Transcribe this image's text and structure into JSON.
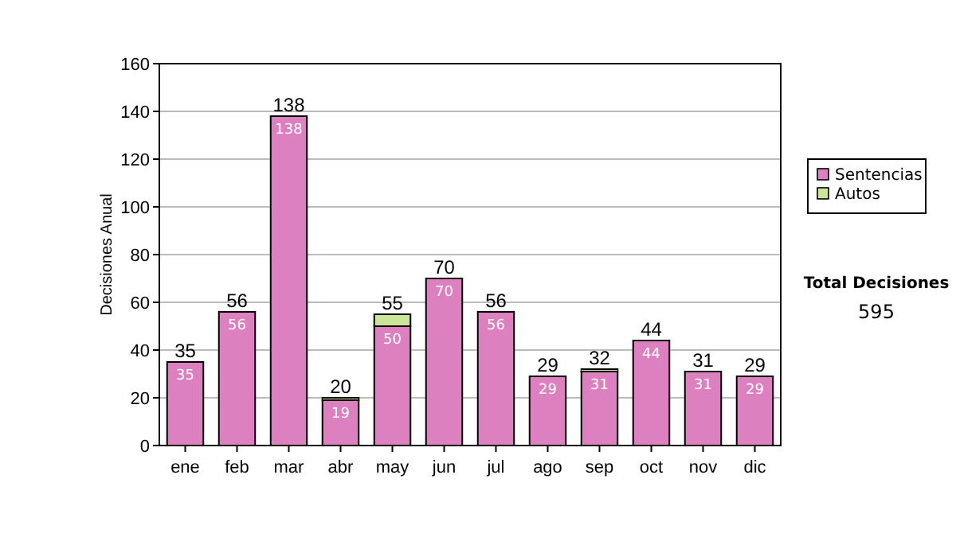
{
  "chart_data": {
    "type": "bar",
    "stacked": true,
    "ylabel": "Decisiones Anual",
    "categories": [
      "ene",
      "feb",
      "mar",
      "abr",
      "may",
      "jun",
      "jul",
      "ago",
      "sep",
      "oct",
      "nov",
      "dic"
    ],
    "series": [
      {
        "name": "Sentencias",
        "color": "#dd80c0",
        "values": [
          35,
          56,
          138,
          19,
          50,
          70,
          56,
          29,
          31,
          44,
          31,
          29
        ],
        "value_labels": [
          "35",
          "56",
          "138",
          "19",
          "50",
          "70",
          "56",
          "29",
          "31",
          "44",
          "31",
          "29"
        ]
      },
      {
        "name": "Autos",
        "color": "#cce699",
        "values": [
          0,
          0,
          0,
          1,
          5,
          0,
          0,
          0,
          1,
          0,
          0,
          0
        ]
      }
    ],
    "totals": [
      "35",
      "56",
      "138",
      "20",
      "55",
      "70",
      "56",
      "29",
      "32",
      "44",
      "31",
      "29"
    ],
    "ylim": [
      0,
      160
    ],
    "yticks": [
      0,
      20,
      40,
      60,
      80,
      100,
      120,
      140,
      160
    ],
    "grid": "y",
    "legend": "right",
    "annotations": [
      "Total Decisiones",
      "595"
    ]
  }
}
